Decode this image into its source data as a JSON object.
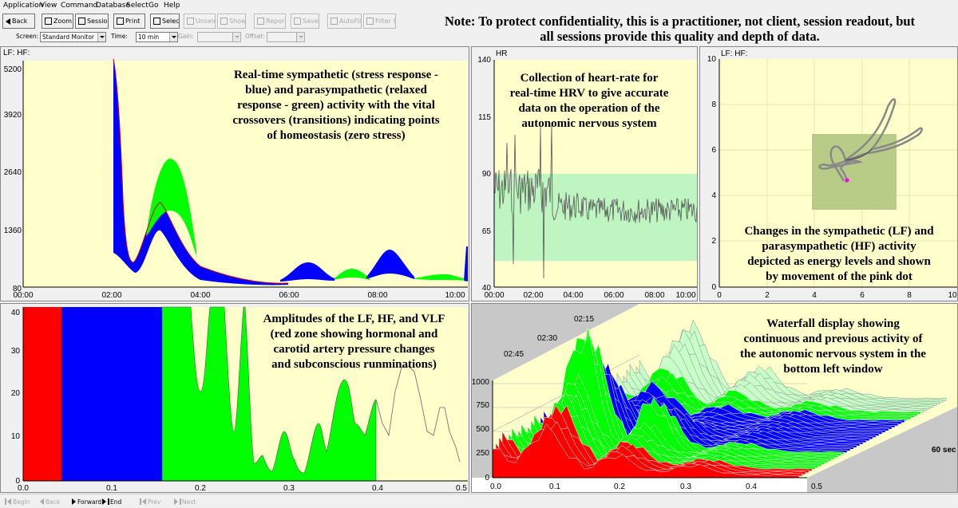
{
  "menu": [
    "Application",
    "View",
    "Command",
    "Database",
    "Select",
    "Go",
    "Help"
  ],
  "toolbar": {
    "back": "Back",
    "zoom": "Zoom",
    "session": "Session",
    "print": "Print",
    "select": "Select",
    "unselect": "Unselect",
    "show": "Show",
    "report": "Report",
    "save": "Save",
    "autofilter": "AutoFilter",
    "filteroff": "Filter Off"
  },
  "screenbar": {
    "screen_label": "Screen:",
    "screen_value": "Standard Monitor",
    "time_label": "Time:",
    "time_value": "10 min",
    "gain_label": "Gain:",
    "offset_label": "Offset:"
  },
  "note": {
    "line1": "Note:  To protect confidentiality, this is a practitioner, not client, session readout, but",
    "line2": "all sessions provide this quality and depth of data."
  },
  "panel1": {
    "title": "LF:  HF:",
    "caption": [
      "Real-time sympathetic (stress response -",
      "blue) and parasympathetic (relaxed",
      "response - green) activity with the vital",
      "crossovers (transitions) indicating points",
      "of homeostasis (zero stress)"
    ],
    "yticks": [
      "5200",
      "3920",
      "2640",
      "1360",
      "80"
    ],
    "xticks": [
      "00:00",
      "02:00",
      "04:00",
      "06:00",
      "08:00",
      "10:00"
    ]
  },
  "panel2": {
    "title": "HR",
    "caption": [
      "Collection of heart-rate for",
      "real-time HRV to give accurate",
      "data on the operation of the",
      "autonomic nervous system"
    ],
    "yticks": [
      "140",
      "115",
      "90",
      "65",
      "40"
    ],
    "xticks": [
      "00:00",
      "02:00",
      "04:00",
      "06:00",
      "08:00",
      "10:00"
    ]
  },
  "panel3": {
    "title": "LF:  HF:",
    "caption": [
      "Changes in the sympathetic (LF) and",
      "parasympathetic (HF) activity",
      "depicted as energy levels and shown",
      "by movement of the pink dot"
    ],
    "yticks": [
      "10",
      "8",
      "6",
      "4",
      "2",
      "0"
    ],
    "xticks": [
      "0",
      "2",
      "4",
      "6",
      "8",
      "10"
    ]
  },
  "panel4": {
    "caption": [
      "Amplitudes of the LF, HF, and VLF",
      "(red zone showing hormonal and",
      "carotid artery pressure changes",
      "and subconscious runminations)"
    ],
    "yticks": [
      "40",
      "30",
      "20",
      "10",
      "0"
    ],
    "xticks": [
      "0.0",
      "0.1",
      "0.2",
      "0.3",
      "0.4",
      "0.5"
    ]
  },
  "panel5": {
    "caption": [
      "Waterfall display showing",
      "continuous and previous activity of",
      "the autonomic nervous system in the",
      "bottom left window"
    ],
    "times": [
      "02:15",
      "02:30",
      "02:45"
    ],
    "yticks": [
      "1000",
      "750",
      "500",
      "250",
      "0"
    ],
    "xticks": [
      "0.0",
      "0.1",
      "0.2",
      "0.3",
      "0.4",
      "0.5"
    ],
    "duration": "60 sec"
  },
  "bottombar": {
    "begin": "Begin",
    "back": "Back",
    "forward": "Forward",
    "end": "End",
    "prev": "Prev",
    "next": "Next"
  },
  "colors": {
    "plot_bg": "#ffffcc",
    "sympathetic": "#0000ff",
    "parasympathetic": "#00ff00",
    "zone": "#bff5c0",
    "red_zone": "#ff0000",
    "dot": "#ff00ff"
  }
}
